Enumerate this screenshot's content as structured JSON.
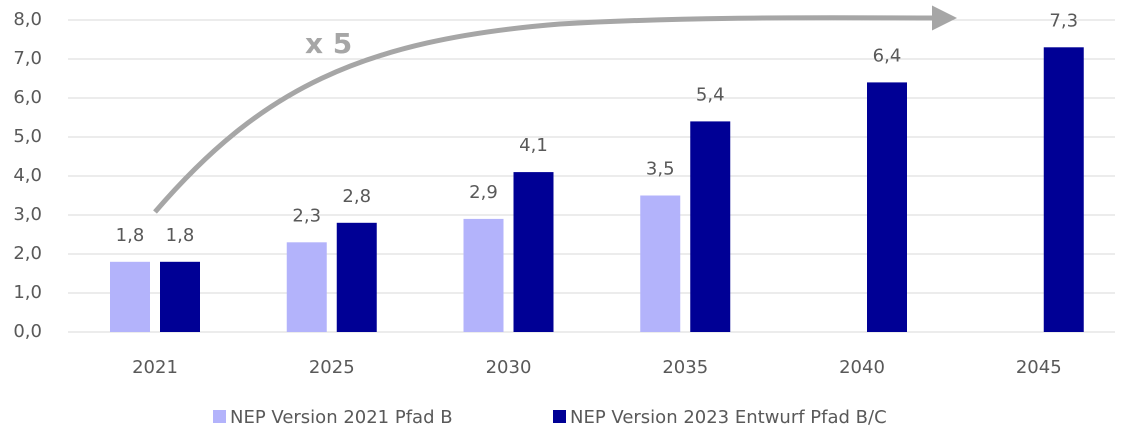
{
  "chart_data": {
    "type": "bar",
    "annotation": "x 5",
    "categories": [
      "2021",
      "2025",
      "2030",
      "2035",
      "2040",
      "2045"
    ],
    "series": [
      {
        "name": "NEP Version 2021 Pfad B",
        "color": "#b3b3fb",
        "values": [
          1.8,
          2.3,
          2.9,
          3.5,
          null,
          null
        ],
        "value_labels": [
          "1,8",
          "2,3",
          "2,9",
          "3,5",
          null,
          null
        ]
      },
      {
        "name": "NEP Version 2023 Entwurf Pfad B/C",
        "color": "#000095",
        "values": [
          1.8,
          2.8,
          4.1,
          5.4,
          6.4,
          7.3
        ],
        "value_labels": [
          "1,8",
          "2,8",
          "4,1",
          "5,4",
          "6,4",
          "7,3"
        ]
      }
    ],
    "ylim": [
      0,
      8
    ],
    "yticks": [
      {
        "value": 0,
        "label": "0,0"
      },
      {
        "value": 1,
        "label": "1,0"
      },
      {
        "value": 2,
        "label": "2,0"
      },
      {
        "value": 3,
        "label": "3,0"
      },
      {
        "value": 4,
        "label": "4,0"
      },
      {
        "value": 5,
        "label": "5,0"
      },
      {
        "value": 6,
        "label": "6,0"
      },
      {
        "value": 7,
        "label": "7,0"
      },
      {
        "value": 8,
        "label": "8,0"
      }
    ],
    "grid": true,
    "legend": "bottom"
  }
}
